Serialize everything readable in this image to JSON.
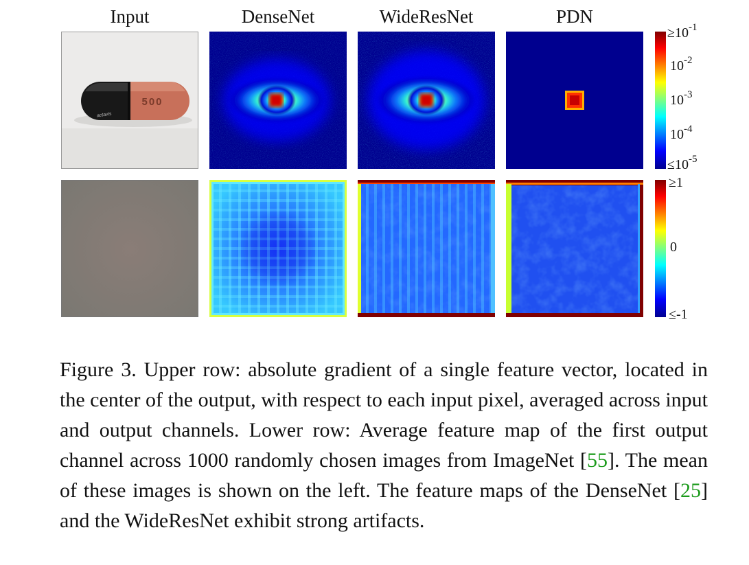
{
  "columns": [
    "Input",
    "DenseNet",
    "WideResNet",
    "PDN"
  ],
  "pill_text": "500",
  "pill_brand": "actavis",
  "colorbar_upper": {
    "ticks": [
      {
        "prefix": "≥10",
        "exp": "-1"
      },
      {
        "prefix": "10",
        "exp": "-2"
      },
      {
        "prefix": "10",
        "exp": "-3"
      },
      {
        "prefix": "10",
        "exp": "-4"
      },
      {
        "prefix": "≤10",
        "exp": "-5"
      }
    ]
  },
  "colorbar_lower": {
    "ticks": [
      "≥1",
      "0",
      "≤-1"
    ]
  },
  "caption": {
    "part1": "Figure 3. Upper row: absolute gradient of a single feature vector, located in the center of the output, with respect to each input pixel, averaged across input and output channels. Lower row: Average feature map of the first output channel across 1000 randomly chosen images from ImageNet [",
    "cite1": "55",
    "part2": "]. The mean of these images is shown on the left. The feature maps of the DenseNet [",
    "cite2": "25",
    "part3": "] and the WideResNet exhibit strong artifacts."
  },
  "colors": {
    "jet_dark_blue": "#00008f",
    "jet_blue": "#0000ff",
    "jet_cyan": "#00ffff",
    "jet_yellow": "#ffff00",
    "jet_red": "#ff0000",
    "jet_dark_red": "#800000",
    "link_green": "#1a9a1a"
  }
}
